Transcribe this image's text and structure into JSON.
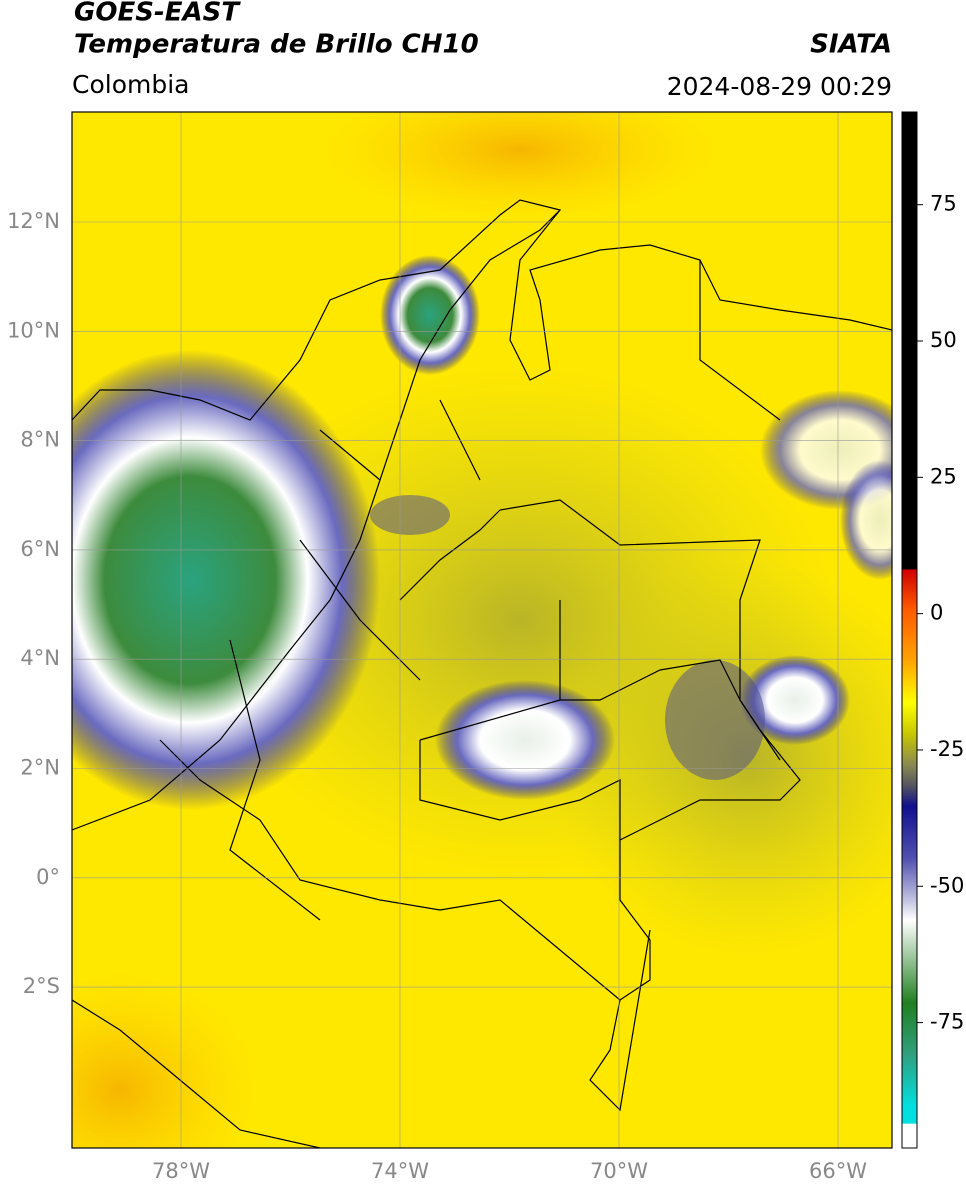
{
  "header": {
    "title": "GOES-EAST",
    "subtitle": "Temperatura de Brillo CH10",
    "source": "SIATA",
    "region": "Colombia",
    "datetime": "2024-08-29 00:29"
  },
  "map": {
    "lat_labels": [
      "12°N",
      "10°N",
      "8°N",
      "6°N",
      "4°N",
      "2°N",
      "0°",
      "2°S"
    ],
    "lon_labels": [
      "78°W",
      "74°W",
      "70°W",
      "66°W"
    ]
  },
  "colorbar": {
    "lim": [
      -98,
      92
    ],
    "ticks": [
      75,
      50,
      25,
      0,
      -25,
      -50,
      -75
    ]
  }
}
